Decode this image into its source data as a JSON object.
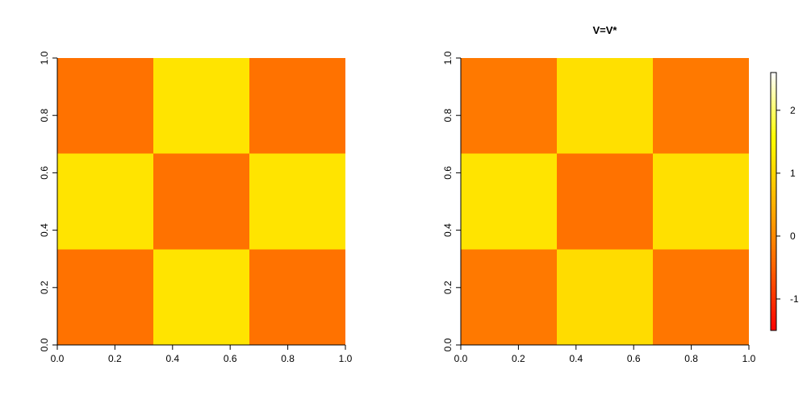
{
  "chart_data": [
    {
      "type": "heatmap",
      "title": "",
      "xlabel": "",
      "ylabel": "",
      "xlim": [
        0,
        1
      ],
      "ylim": [
        0,
        1
      ],
      "x_ticks": [
        "0.0",
        "0.2",
        "0.4",
        "0.6",
        "0.8",
        "1.0"
      ],
      "y_ticks": [
        "0.0",
        "0.2",
        "0.4",
        "0.6",
        "0.8",
        "1.0"
      ],
      "x_breaks": [
        0,
        0.333,
        0.667,
        1
      ],
      "y_breaks": [
        0,
        0.333,
        0.667,
        1
      ],
      "values": [
        [
          -0.3,
          1.2,
          -0.3
        ],
        [
          1.2,
          -0.3,
          1.2
        ],
        [
          -0.3,
          1.2,
          -0.3
        ]
      ],
      "grid": false,
      "legend": "none"
    },
    {
      "type": "heatmap",
      "title": "V=V*",
      "xlabel": "",
      "ylabel": "",
      "xlim": [
        0,
        1
      ],
      "ylim": [
        0,
        1
      ],
      "x_ticks": [
        "0.0",
        "0.2",
        "0.4",
        "0.6",
        "0.8",
        "1.0"
      ],
      "y_ticks": [
        "0.0",
        "0.2",
        "0.4",
        "0.6",
        "0.8",
        "1.0"
      ],
      "x_breaks": [
        0,
        0.333,
        0.667,
        1
      ],
      "y_breaks": [
        0,
        0.333,
        0.667,
        1
      ],
      "values": [
        [
          -0.2,
          1.1,
          -0.25
        ],
        [
          1.2,
          -0.3,
          1.15
        ],
        [
          -0.2,
          1.15,
          -0.2
        ]
      ],
      "grid": false,
      "legend": "right",
      "colorbar": {
        "range": [
          -1.5,
          2.6
        ],
        "ticks": [
          -1,
          0,
          1,
          2
        ],
        "tick_labels": [
          "-1",
          "0",
          "1",
          "2"
        ],
        "colors": [
          "#ff0000",
          "#ff6400",
          "#ffb400",
          "#ffff00",
          "#ffffff"
        ]
      }
    }
  ],
  "colors": {
    "low": "#ff6a00",
    "high": "#ffcc00"
  }
}
